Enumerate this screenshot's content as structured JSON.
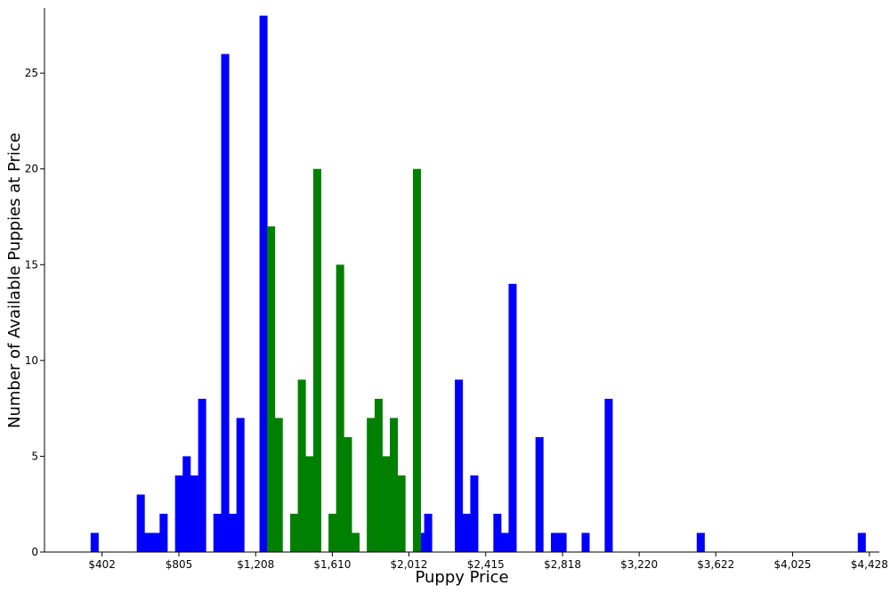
{
  "chart_data": {
    "type": "bar",
    "title": "",
    "xlabel": "Puppy Price",
    "ylabel": "Number of Available Puppies at Price",
    "xlim": [
      100,
      4480
    ],
    "ylim": [
      0,
      28.4
    ],
    "grid": false,
    "legend": "none",
    "x_ticks": [
      {
        "value": 402,
        "label": "$402"
      },
      {
        "value": 805,
        "label": "$805"
      },
      {
        "value": 1208,
        "label": "$1,208"
      },
      {
        "value": 1610,
        "label": "$1,610"
      },
      {
        "value": 2012,
        "label": "$2,012"
      },
      {
        "value": 2415,
        "label": "$2,415"
      },
      {
        "value": 2818,
        "label": "$2,818"
      },
      {
        "value": 3220,
        "label": "$3,220"
      },
      {
        "value": 3622,
        "label": "$3,622"
      },
      {
        "value": 4025,
        "label": "$4,025"
      },
      {
        "value": 4428,
        "label": "$4,428"
      }
    ],
    "y_ticks": [
      0,
      5,
      10,
      15,
      20,
      25
    ],
    "bin_width": 40.3,
    "series": [
      {
        "color": "#0000ff",
        "bins": [
          {
            "x": 342,
            "count": 1
          },
          {
            "x": 584,
            "count": 3
          },
          {
            "x": 624,
            "count": 1
          },
          {
            "x": 664,
            "count": 1
          },
          {
            "x": 704,
            "count": 2
          },
          {
            "x": 785,
            "count": 4
          },
          {
            "x": 825,
            "count": 5
          },
          {
            "x": 865,
            "count": 4
          },
          {
            "x": 906,
            "count": 8
          },
          {
            "x": 986,
            "count": 2
          },
          {
            "x": 1027,
            "count": 26
          },
          {
            "x": 1067,
            "count": 2
          },
          {
            "x": 1107,
            "count": 7
          },
          {
            "x": 1228,
            "count": 28
          },
          {
            "x": 2052,
            "count": 1
          },
          {
            "x": 2092,
            "count": 2
          },
          {
            "x": 2253,
            "count": 9
          },
          {
            "x": 2294,
            "count": 2
          },
          {
            "x": 2334,
            "count": 4
          },
          {
            "x": 2455,
            "count": 2
          },
          {
            "x": 2495,
            "count": 1
          },
          {
            "x": 2535,
            "count": 14
          },
          {
            "x": 2676,
            "count": 6
          },
          {
            "x": 2757,
            "count": 1
          },
          {
            "x": 2797,
            "count": 1
          },
          {
            "x": 2918,
            "count": 1
          },
          {
            "x": 3039,
            "count": 8
          },
          {
            "x": 3522,
            "count": 1
          },
          {
            "x": 4367,
            "count": 1
          }
        ]
      },
      {
        "color": "#008000",
        "bins": [
          {
            "x": 1268,
            "count": 17
          },
          {
            "x": 1308,
            "count": 7
          },
          {
            "x": 1389,
            "count": 2
          },
          {
            "x": 1429,
            "count": 9
          },
          {
            "x": 1469,
            "count": 5
          },
          {
            "x": 1510,
            "count": 20
          },
          {
            "x": 1590,
            "count": 2
          },
          {
            "x": 1630,
            "count": 15
          },
          {
            "x": 1671,
            "count": 6
          },
          {
            "x": 1711,
            "count": 1
          },
          {
            "x": 1791,
            "count": 7
          },
          {
            "x": 1832,
            "count": 8
          },
          {
            "x": 1872,
            "count": 5
          },
          {
            "x": 1912,
            "count": 7
          },
          {
            "x": 1952,
            "count": 4
          },
          {
            "x": 2033,
            "count": 20
          }
        ]
      }
    ]
  }
}
